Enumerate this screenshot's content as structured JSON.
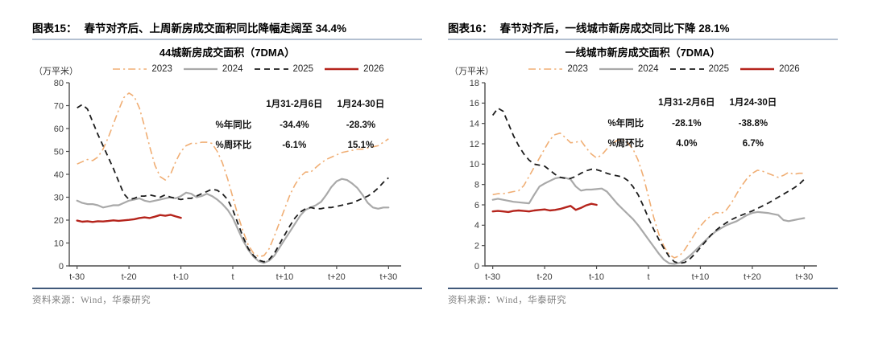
{
  "figures": [
    {
      "header_label": "图表15：",
      "header_title": "春节对齐后、上周新房成交面积同比降幅走阔至 34.4%",
      "chart_title": "44城新房成交面积（7DMA）",
      "y_unit": "（万平米）",
      "source": "资料来源：Wind，华泰研究"
    },
    {
      "header_label": "图表16：",
      "header_title": "春节对齐后，一线城市新房成交同比下降 28.1%",
      "chart_title": "一线城市新房成交面积（7DMA）",
      "y_unit": "（万平米）",
      "source": "资料来源：Wind，华泰研究"
    }
  ],
  "colors": {
    "c2023": "#f0ae74",
    "c2024": "#a9a9a9",
    "c2025": "#1c1c1c",
    "c2026": "#b5241c",
    "axis": "#4d4d4d",
    "header_rule": "#b3c0d1",
    "source_rule": "#41597a"
  },
  "chart_data": [
    {
      "type": "line",
      "title": "44城新房成交面积（7DMA）",
      "y_unit": "（万平米）",
      "xlabel": "",
      "ylabel": "万平米",
      "x_range": [
        -31.5,
        31.5
      ],
      "ylim": [
        0,
        80
      ],
      "y_step": 10,
      "grid": false,
      "legend_position": "top",
      "x_ticks": [
        {
          "v": -30,
          "label": "t-30"
        },
        {
          "v": -20,
          "label": "t-20"
        },
        {
          "v": -10,
          "label": "t-10"
        },
        {
          "v": 0,
          "label": "t"
        },
        {
          "v": 10,
          "label": "t+10"
        },
        {
          "v": 20,
          "label": "t+20"
        },
        {
          "v": 30,
          "label": "t+30"
        }
      ],
      "series": [
        {
          "name": "2023",
          "color": "#f0ae74",
          "dash": "dashdot",
          "width": 1.6,
          "x_start": -30,
          "values": [
            44.5,
            45.5,
            46.5,
            46,
            47.5,
            51,
            56,
            62,
            68,
            73.5,
            75.5,
            74,
            69,
            61,
            52,
            44,
            39,
            37.5,
            40,
            45.5,
            50,
            52.5,
            53.5,
            53.5,
            54,
            54,
            53.5,
            50,
            45,
            38,
            30,
            22,
            15,
            9,
            5.5,
            4,
            4.5,
            7.5,
            13,
            19,
            25,
            31,
            35.5,
            39,
            41,
            41,
            43,
            45,
            46.5,
            47.5,
            48.5,
            49.5,
            50,
            50.5,
            51,
            51,
            51.5,
            52,
            52.5,
            54,
            55.5
          ]
        },
        {
          "name": "2024",
          "color": "#a9a9a9",
          "dash": "solid",
          "width": 2.2,
          "x_start": -30,
          "values": [
            28.5,
            27.5,
            27,
            27,
            26.5,
            25.5,
            26,
            26.5,
            26.5,
            27.5,
            28.5,
            29,
            29.5,
            28.5,
            28,
            28.5,
            29,
            29.5,
            30,
            29.5,
            30.5,
            32,
            31.5,
            30,
            30.5,
            31.5,
            30.5,
            29,
            27,
            24.5,
            21,
            16,
            11,
            7,
            4,
            2,
            1.3,
            2.3,
            4.5,
            8,
            11.5,
            15,
            18.5,
            22,
            24.5,
            25.5,
            26.5,
            28,
            31,
            34.5,
            37,
            38,
            37.5,
            36,
            34,
            31,
            27.5,
            25.5,
            25,
            25.5,
            25.5
          ]
        },
        {
          "name": "2025",
          "color": "#1c1c1c",
          "dash": "dashed",
          "width": 1.8,
          "x_start": -30,
          "values": [
            69,
            70.5,
            68.5,
            63,
            57.5,
            52.5,
            47.5,
            42.5,
            37,
            31.5,
            29,
            29.5,
            30.5,
            30.5,
            31,
            30.5,
            30,
            31,
            30,
            29.5,
            29,
            29.5,
            29.5,
            30.5,
            31.5,
            32.5,
            33.5,
            33,
            31.5,
            29,
            24.5,
            18.5,
            12.5,
            7.5,
            4.5,
            2.5,
            1.8,
            2.8,
            5.5,
            9.5,
            13.5,
            17.5,
            21,
            23.5,
            25,
            25.5,
            25,
            25,
            25.5,
            25.5,
            26,
            26.5,
            27,
            27.5,
            28.5,
            29.5,
            30.5,
            32,
            34,
            36.5,
            38.5
          ]
        },
        {
          "name": "2026",
          "color": "#b5241c",
          "dash": "solid",
          "width": 2.4,
          "x_start": -30,
          "values": [
            19.8,
            19.3,
            19.5,
            19.2,
            19.5,
            19.4,
            19.6,
            19.9,
            19.7,
            19.9,
            20.1,
            20.4,
            20.9,
            21.2,
            20.9,
            21.5,
            22.2,
            21.9,
            22.3,
            21.6,
            21.0
          ]
        }
      ],
      "table": {
        "header": [
          "",
          "1月31-2月6日",
          "1月24-30日"
        ],
        "rows": [
          [
            "%年同比",
            "-34.4%",
            "-28.3%"
          ],
          [
            "%周环比",
            "-6.1%",
            "15.1%"
          ]
        ]
      }
    },
    {
      "type": "line",
      "title": "一线城市新房成交面积（7DMA）",
      "y_unit": "（万平米）",
      "xlabel": "",
      "ylabel": "万平米",
      "x_range": [
        -31.5,
        31.5
      ],
      "ylim": [
        0,
        18
      ],
      "y_step": 2,
      "grid": false,
      "legend_position": "top",
      "x_ticks": [
        {
          "v": -30,
          "label": "t-30"
        },
        {
          "v": -20,
          "label": "t-20"
        },
        {
          "v": -10,
          "label": "t-10"
        },
        {
          "v": 0,
          "label": "t"
        },
        {
          "v": 10,
          "label": "t+10"
        },
        {
          "v": 20,
          "label": "t+20"
        },
        {
          "v": 30,
          "label": "t+30"
        }
      ],
      "series": [
        {
          "name": "2023",
          "color": "#f0ae74",
          "dash": "dashdot",
          "width": 1.6,
          "x_start": -30,
          "values": [
            7.0,
            7.1,
            7.1,
            7.2,
            7.3,
            7.4,
            7.9,
            8.8,
            9.7,
            10.6,
            11.5,
            12.4,
            12.9,
            13.05,
            12.6,
            12.1,
            12.15,
            12.3,
            11.6,
            11.0,
            10.6,
            10.9,
            11.5,
            12.0,
            12.35,
            12.4,
            12.1,
            11.5,
            10.4,
            8.8,
            6.8,
            4.8,
            3.1,
            1.9,
            1.1,
            0.8,
            1.0,
            1.6,
            2.4,
            3.2,
            3.9,
            4.5,
            4.9,
            5.25,
            5.15,
            5.5,
            6.2,
            7.1,
            7.9,
            8.6,
            9.1,
            9.4,
            9.3,
            9.1,
            8.9,
            8.7,
            8.9,
            9.2,
            9.0,
            9.1,
            9.1
          ]
        },
        {
          "name": "2024",
          "color": "#a9a9a9",
          "dash": "solid",
          "width": 2.2,
          "x_start": -30,
          "values": [
            6.5,
            6.6,
            6.5,
            6.4,
            6.3,
            6.25,
            6.2,
            6.15,
            7.0,
            7.8,
            8.1,
            8.35,
            8.6,
            8.7,
            8.65,
            8.5,
            7.8,
            7.4,
            7.5,
            7.5,
            7.55,
            7.6,
            7.3,
            6.7,
            6.1,
            5.6,
            5.1,
            4.6,
            4.0,
            3.3,
            2.6,
            1.9,
            1.2,
            0.6,
            0.25,
            0.2,
            0.3,
            0.6,
            1.0,
            1.5,
            2.0,
            2.5,
            3.0,
            3.4,
            3.7,
            4.0,
            4.2,
            4.4,
            4.7,
            5.0,
            5.2,
            5.3,
            5.25,
            5.2,
            5.1,
            5.0,
            4.5,
            4.4,
            4.5,
            4.6,
            4.7
          ]
        },
        {
          "name": "2025",
          "color": "#1c1c1c",
          "dash": "dashed",
          "width": 1.8,
          "x_start": -30,
          "values": [
            14.8,
            15.5,
            15.2,
            14.0,
            12.8,
            11.8,
            11.0,
            10.4,
            10.0,
            9.9,
            9.8,
            9.4,
            9.0,
            8.7,
            8.6,
            8.6,
            8.8,
            9.1,
            9.35,
            9.5,
            9.45,
            9.3,
            9.1,
            8.95,
            8.85,
            8.75,
            8.4,
            7.8,
            7.0,
            5.9,
            4.7,
            3.6,
            2.6,
            1.7,
            0.9,
            0.4,
            0.25,
            0.35,
            0.7,
            1.2,
            1.8,
            2.4,
            3.0,
            3.5,
            3.9,
            4.25,
            4.55,
            4.8,
            5.0,
            5.2,
            5.4,
            5.65,
            5.9,
            6.15,
            6.45,
            6.75,
            7.05,
            7.35,
            7.65,
            8.0,
            8.5
          ]
        },
        {
          "name": "2026",
          "color": "#b5241c",
          "dash": "solid",
          "width": 2.4,
          "x_start": -30,
          "values": [
            5.35,
            5.4,
            5.35,
            5.3,
            5.4,
            5.45,
            5.4,
            5.35,
            5.45,
            5.5,
            5.55,
            5.45,
            5.5,
            5.6,
            5.75,
            5.9,
            5.5,
            5.7,
            5.95,
            6.1,
            6.0
          ]
        }
      ],
      "table": {
        "header": [
          "",
          "1月31-2月6日",
          "1月24-30日"
        ],
        "rows": [
          [
            "%年同比",
            "-28.1%",
            "-38.8%"
          ],
          [
            "%周环比",
            "4.0%",
            "6.7%"
          ]
        ]
      }
    }
  ]
}
